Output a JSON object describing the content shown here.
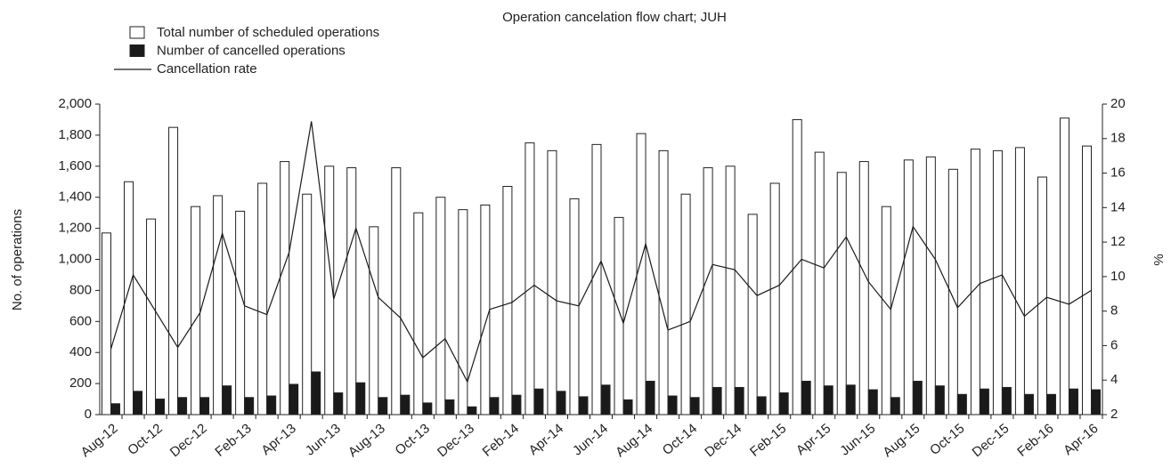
{
  "chart_data": {
    "type": "bar_line",
    "title": "Operation cancelation flow chart; JUH",
    "ylabel": "No. of operations",
    "y2label": "%",
    "categories": [
      "Aug-12",
      null,
      "Oct-12",
      null,
      "Dec-12",
      null,
      "Feb-13",
      null,
      "Apr-13",
      null,
      "Jun-13",
      null,
      "Aug-13",
      null,
      "Oct-13",
      null,
      "Dec-13",
      null,
      "Feb-14",
      null,
      "Apr-14",
      null,
      "Jun-14",
      null,
      "Aug-14",
      null,
      "Oct-14",
      null,
      "Dec-14",
      null,
      "Feb-15",
      null,
      "Apr-15",
      null,
      "Jun-15",
      null,
      "Aug-15",
      null,
      "Oct-15",
      null,
      "Dec-15",
      null,
      "Feb-16",
      null,
      "Apr-16"
    ],
    "series": [
      {
        "name": "Total number of scheduled operations",
        "color": "#ffffff",
        "values": [
          1170,
          1500,
          1260,
          1850,
          1340,
          1410,
          1310,
          1490,
          1630,
          1420,
          1600,
          1590,
          1210,
          1590,
          1300,
          1400,
          1320,
          1350,
          1470,
          1750,
          1700,
          1390,
          1740,
          1270,
          1810,
          1700,
          1420,
          1590,
          1600,
          1290,
          1490,
          1900,
          1690,
          1560,
          1630,
          1340,
          1640,
          1660,
          1580,
          1710,
          1700,
          1720,
          1530,
          1910,
          1730
        ]
      },
      {
        "name": "Number of cancelled operations",
        "color": "#1a1a1a",
        "values": [
          70,
          150,
          100,
          110,
          110,
          185,
          110,
          120,
          195,
          275,
          140,
          205,
          110,
          125,
          75,
          95,
          50,
          110,
          125,
          165,
          150,
          115,
          190,
          95,
          215,
          120,
          110,
          175,
          175,
          115,
          140,
          215,
          185,
          190,
          160,
          110,
          215,
          185,
          130,
          165,
          175,
          130,
          130,
          165,
          160
        ]
      },
      {
        "name": "Cancellation rate",
        "color": "#1a1a1a",
        "axis": "y2",
        "values": [
          5.8,
          10.1,
          8.0,
          5.9,
          7.9,
          12.5,
          8.3,
          7.8,
          11.4,
          19.0,
          8.7,
          12.8,
          8.8,
          7.6,
          5.3,
          6.4,
          3.9,
          8.1,
          8.5,
          9.5,
          8.6,
          8.3,
          10.9,
          7.3,
          11.9,
          6.9,
          7.4,
          10.7,
          10.4,
          8.9,
          9.5,
          11.0,
          10.5,
          12.3,
          9.7,
          8.1,
          12.9,
          11.0,
          8.2,
          9.6,
          10.1,
          7.7,
          8.8,
          8.4,
          9.2
        ]
      }
    ],
    "ylim": [
      0,
      2000
    ],
    "yticks": [
      0,
      200,
      400,
      600,
      800,
      {
        "value": 1000,
        "label": "1,000"
      },
      {
        "value": 1200,
        "label": "1,200"
      },
      {
        "value": 1400,
        "label": "1,400"
      },
      {
        "value": 1600,
        "label": "1,600"
      },
      {
        "value": 1800,
        "label": "1,800"
      },
      {
        "value": 2000,
        "label": "2,000"
      }
    ],
    "y2lim": [
      2,
      20
    ],
    "y2ticks": [
      2,
      4,
      6,
      8,
      10,
      12,
      14,
      16,
      18,
      20
    ],
    "grid": false
  }
}
